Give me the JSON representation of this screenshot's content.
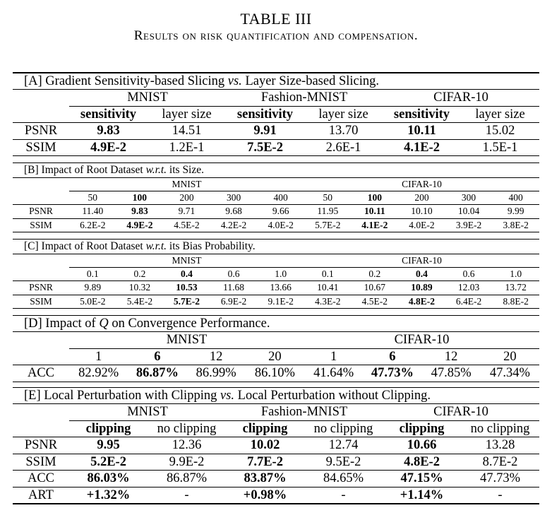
{
  "title": "TABLE III",
  "caption": "Results on risk quantification and compensation.",
  "section_a": {
    "header_prefix": "[A] Gradient Sensitivity-based Slicing",
    "header_vs": "vs.",
    "header_suffix": "Layer Size-based Slicing.",
    "datasets": [
      "MNIST",
      "Fashion-MNIST",
      "CIFAR-10"
    ],
    "subheaders": [
      "sensitivity",
      "layer size",
      "sensitivity",
      "layer size",
      "sensitivity",
      "layer size"
    ],
    "rows": [
      {
        "label": "PSNR",
        "values": [
          "9.83",
          "14.51",
          "9.91",
          "13.70",
          "10.11",
          "15.02"
        ]
      },
      {
        "label": "SSIM",
        "values": [
          "4.9E-2",
          "1.2E-1",
          "7.5E-2",
          "2.6E-1",
          "4.1E-2",
          "1.5E-1"
        ]
      }
    ]
  },
  "section_b": {
    "header_prefix": "[B] Impact of Root Dataset",
    "header_wrt": "w.r.t.",
    "header_suffix": "its Size.",
    "datasets": [
      "MNIST",
      "CIFAR-10"
    ],
    "subheaders": [
      "50",
      "100",
      "200",
      "300",
      "400",
      "50",
      "100",
      "200",
      "300",
      "400"
    ],
    "rows": [
      {
        "label": "PSNR",
        "values": [
          "11.40",
          "9.83",
          "9.71",
          "9.68",
          "9.66",
          "11.95",
          "10.11",
          "10.10",
          "10.04",
          "9.99"
        ]
      },
      {
        "label": "SSIM",
        "values": [
          "6.2E-2",
          "4.9E-2",
          "4.5E-2",
          "4.2E-2",
          "4.0E-2",
          "5.7E-2",
          "4.1E-2",
          "4.0E-2",
          "3.9E-2",
          "3.8E-2"
        ]
      }
    ]
  },
  "section_c": {
    "header_prefix": "[C] Impact of Root Dataset",
    "header_wrt": "w.r.t.",
    "header_suffix": "its Bias Probability.",
    "datasets": [
      "MNIST",
      "CIFAR-10"
    ],
    "subheaders": [
      "0.1",
      "0.2",
      "0.4",
      "0.6",
      "1.0",
      "0.1",
      "0.2",
      "0.4",
      "0.6",
      "1.0"
    ],
    "rows": [
      {
        "label": "PSNR",
        "values": [
          "9.89",
          "10.32",
          "10.53",
          "11.68",
          "13.66",
          "10.41",
          "10.67",
          "10.89",
          "12.03",
          "13.72"
        ]
      },
      {
        "label": "SSIM",
        "values": [
          "5.0E-2",
          "5.4E-2",
          "5.7E-2",
          "6.9E-2",
          "9.1E-2",
          "4.3E-2",
          "4.5E-2",
          "4.8E-2",
          "6.4E-2",
          "8.8E-2"
        ]
      }
    ]
  },
  "section_d": {
    "header_prefix": "[D] Impact of",
    "header_var": "Q",
    "header_suffix": "on Convergence Performance.",
    "datasets": [
      "MNIST",
      "CIFAR-10"
    ],
    "subheaders": [
      "1",
      "6",
      "12",
      "20",
      "1",
      "6",
      "12",
      "20"
    ],
    "rows": [
      {
        "label": "ACC",
        "values": [
          "82.92%",
          "86.87%",
          "86.99%",
          "86.10%",
          "41.64%",
          "47.73%",
          "47.85%",
          "47.34%"
        ]
      }
    ]
  },
  "section_e": {
    "header_prefix": "[E] Local Perturbation with Clipping",
    "header_vs": "vs.",
    "header_suffix": "Local Perturbation without Clipping.",
    "datasets": [
      "MNIST",
      "Fashion-MNIST",
      "CIFAR-10"
    ],
    "subheaders": [
      "clipping",
      "no clipping",
      "clipping",
      "no clipping",
      "clipping",
      "no clipping"
    ],
    "rows": [
      {
        "label": "PSNR",
        "values": [
          "9.95",
          "12.36",
          "10.02",
          "12.74",
          "10.66",
          "13.28"
        ]
      },
      {
        "label": "SSIM",
        "values": [
          "5.2E-2",
          "9.9E-2",
          "7.7E-2",
          "9.5E-2",
          "4.8E-2",
          "8.7E-2"
        ]
      },
      {
        "label": "ACC",
        "values": [
          "86.03%",
          "86.87%",
          "83.87%",
          "84.65%",
          "47.15%",
          "47.73%"
        ]
      },
      {
        "label": "ART",
        "values": [
          "+1.32%",
          "-",
          "+0.98%",
          "-",
          "+1.14%",
          "-"
        ]
      }
    ]
  }
}
